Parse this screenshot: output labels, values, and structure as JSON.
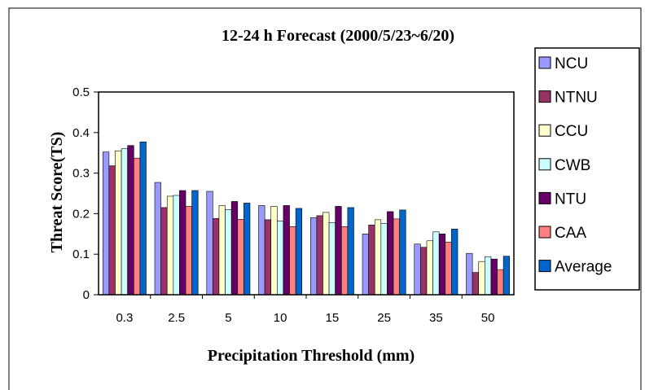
{
  "chart_data": {
    "type": "bar",
    "title": "12-24 h Forecast (2000/5/23~6/20)",
    "xlabel": "Precipitation Threshold (mm)",
    "ylabel": "Threat Score(TS)",
    "ylim": [
      0,
      0.5
    ],
    "yticks": [
      "0",
      "0.1",
      "0.2",
      "0.3",
      "0.4",
      "0.5"
    ],
    "grid": false,
    "legend_position": "right",
    "categories": [
      "0.3",
      "2.5",
      "5",
      "10",
      "15",
      "25",
      "35",
      "50"
    ],
    "series": [
      {
        "name": "NCU",
        "color": "#9999ff",
        "values": [
          0.352,
          0.277,
          0.255,
          0.22,
          0.19,
          0.15,
          0.125,
          0.102
        ]
      },
      {
        "name": "NTNU",
        "color": "#993366",
        "values": [
          0.318,
          0.215,
          0.188,
          0.185,
          0.195,
          0.172,
          0.117,
          0.055
        ]
      },
      {
        "name": "CCU",
        "color": "#ffffcc",
        "values": [
          0.355,
          0.243,
          0.22,
          0.218,
          0.203,
          0.185,
          0.133,
          0.082
        ]
      },
      {
        "name": "CWB",
        "color": "#ccffff",
        "values": [
          0.36,
          0.245,
          0.21,
          0.182,
          0.178,
          0.176,
          0.155,
          0.094
        ]
      },
      {
        "name": "NTU",
        "color": "#660066",
        "values": [
          0.368,
          0.257,
          0.23,
          0.22,
          0.218,
          0.205,
          0.15,
          0.088
        ]
      },
      {
        "name": "CAA",
        "color": "#ff8080",
        "values": [
          0.337,
          0.218,
          0.186,
          0.168,
          0.168,
          0.187,
          0.13,
          0.062
        ]
      },
      {
        "name": "Average",
        "color": "#0066cc",
        "values": [
          0.377,
          0.257,
          0.226,
          0.213,
          0.215,
          0.209,
          0.162,
          0.095
        ]
      }
    ]
  }
}
